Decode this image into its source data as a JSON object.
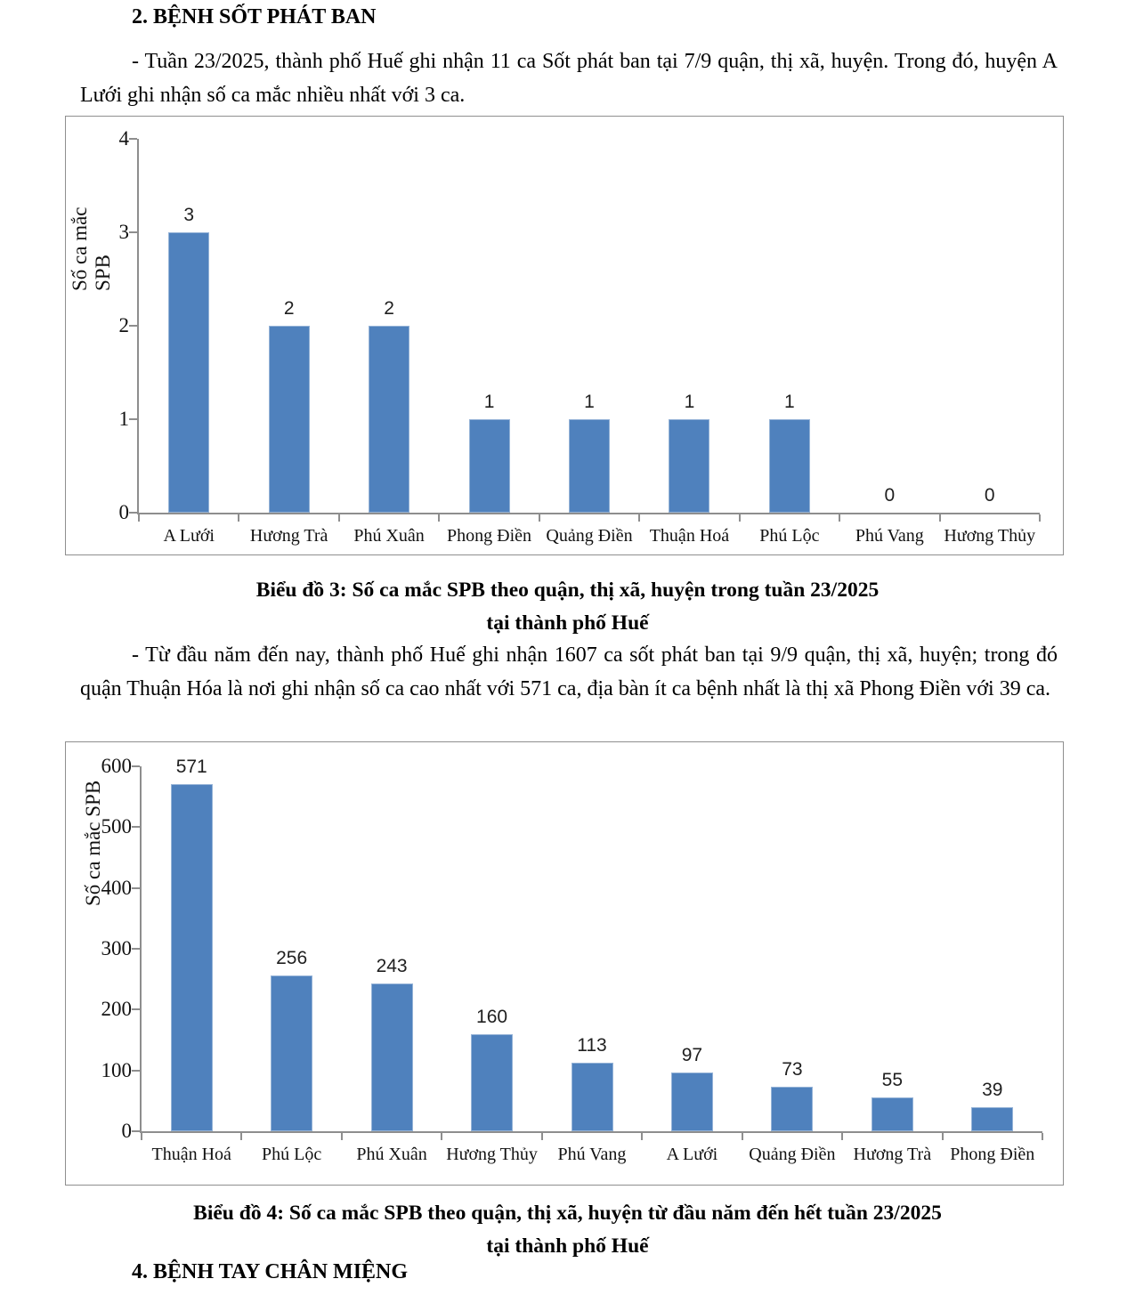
{
  "document": {
    "heading_sot_phat_ban": "2. BỆNH SỐT PHÁT BAN",
    "paragraph_week": "- Tuần 23/2025, thành phố Huế ghi nhận 11 ca Sốt phát ban tại 7/9 quận, thị xã, huyện. Trong đó, huyện A Lưới ghi nhận số ca mắc nhiều nhất với 3 ca.",
    "paragraph_ytd": "- Từ đầu năm đến nay, thành phố Huế ghi nhận 1607 ca sốt phát ban tại 9/9 quận, thị xã, huyện; trong đó quận Thuận Hóa là nơi ghi nhận số ca cao nhất với 571 ca, địa bàn ít ca bệnh nhất là thị xã Phong Điền với 39 ca.",
    "heading_tay_chan_mieng": "4. BỆNH TAY CHÂN MIỆNG"
  },
  "chart_data": [
    {
      "type": "bar",
      "title": "Biểu đồ 3: Số ca mắc SPB theo quận, thị xã, huyện trong tuần 23/2025 tại thành phố Huế",
      "title_lines": [
        "Biểu đồ 3: Số ca mắc SPB theo quận, thị xã, huyện trong tuần 23/2025",
        "tại thành phố Huế"
      ],
      "categories": [
        "A Lưới",
        "Hương Trà",
        "Phú Xuân",
        "Phong Điền",
        "Quảng Điền",
        "Thuận Hoá",
        "Phú Lộc",
        "Phú Vang",
        "Hương Thủy"
      ],
      "values": [
        3,
        2,
        2,
        1,
        1,
        1,
        1,
        0,
        0
      ],
      "xlabel": "",
      "ylabel": "Số ca mắc SPB",
      "ylim": [
        0,
        4
      ],
      "yticks": [
        0,
        1,
        2,
        3,
        4
      ],
      "grid": false,
      "legend": false,
      "bar_color": "#4F81BD",
      "bar_border_color": "#95B3D7",
      "axis_color": "#8e8e8e"
    },
    {
      "type": "bar",
      "title": "Biểu đồ 4: Số ca mắc SPB theo quận, thị xã, huyện từ đầu năm đến hết tuần 23/2025 tại thành phố Huế",
      "title_lines": [
        "Biểu đồ 4: Số ca mắc SPB theo quận, thị xã, huyện từ đầu năm đến hết tuần 23/2025",
        "tại thành phố Huế"
      ],
      "categories": [
        "Thuận Hoá",
        "Phú Lộc",
        "Phú Xuân",
        "Hương Thủy",
        "Phú Vang",
        "A Lưới",
        "Quảng Điền",
        "Hương Trà",
        "Phong Điền"
      ],
      "values": [
        571,
        256,
        243,
        160,
        113,
        97,
        73,
        55,
        39
      ],
      "xlabel": "",
      "ylabel": "Số ca mắc SPB",
      "ylim": [
        0,
        600
      ],
      "yticks": [
        0,
        100,
        200,
        300,
        400,
        500,
        600
      ],
      "grid": false,
      "legend": false,
      "bar_color": "#4F81BD",
      "bar_border_color": "#95B3D7",
      "axis_color": "#8e8e8e"
    }
  ]
}
